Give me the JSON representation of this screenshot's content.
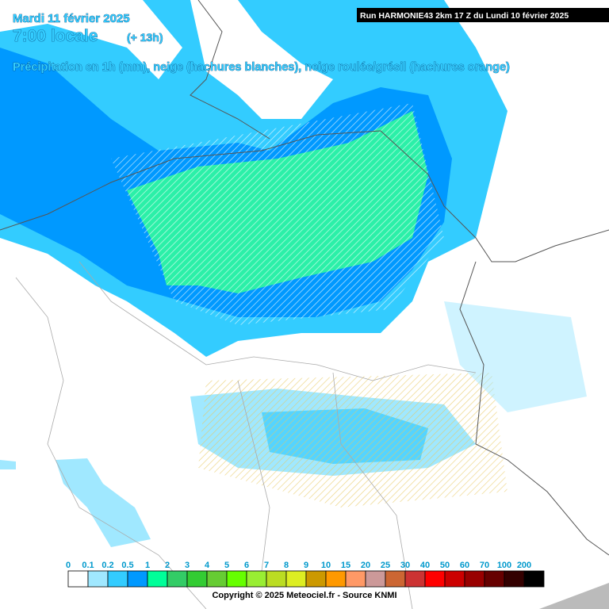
{
  "header": {
    "date": "Mardi 11 février 2025",
    "time": "7:00 locale",
    "offset": "(+ 13h)",
    "subtitle": "Précipitation en 1h (mm), neige (hachures blanches), neige roulée/grésil (hachures orange)",
    "run": "Run HARMONIE43 2km 17 Z du Lundi 10 février 2025"
  },
  "legend": {
    "items": [
      {
        "label": "0",
        "color": "#ffffff"
      },
      {
        "label": "0.1",
        "color": "#a0e8ff"
      },
      {
        "label": "0.2",
        "color": "#33ccff"
      },
      {
        "label": "0.5",
        "color": "#0099ff"
      },
      {
        "label": "1",
        "color": "#00ff99"
      },
      {
        "label": "2",
        "color": "#33cc66"
      },
      {
        "label": "3",
        "color": "#33cc33"
      },
      {
        "label": "4",
        "color": "#66cc33"
      },
      {
        "label": "5",
        "color": "#66ff00"
      },
      {
        "label": "6",
        "color": "#99ee33"
      },
      {
        "label": "7",
        "color": "#bbdd22"
      },
      {
        "label": "8",
        "color": "#ddee22"
      },
      {
        "label": "9",
        "color": "#cc9900"
      },
      {
        "label": "10",
        "color": "#ff9900"
      },
      {
        "label": "15",
        "color": "#ff9966"
      },
      {
        "label": "20",
        "color": "#cc9999"
      },
      {
        "label": "25",
        "color": "#cc6633"
      },
      {
        "label": "30",
        "color": "#cc3333"
      },
      {
        "label": "40",
        "color": "#ff0000"
      },
      {
        "label": "50",
        "color": "#cc0000"
      },
      {
        "label": "60",
        "color": "#990000"
      },
      {
        "label": "70",
        "color": "#660000"
      },
      {
        "label": "100",
        "color": "#330000"
      },
      {
        "label": "200",
        "color": "#000000"
      }
    ]
  },
  "footer": {
    "copyright": "Copyright © 2025 Meteociel.fr - Source KNMI"
  }
}
